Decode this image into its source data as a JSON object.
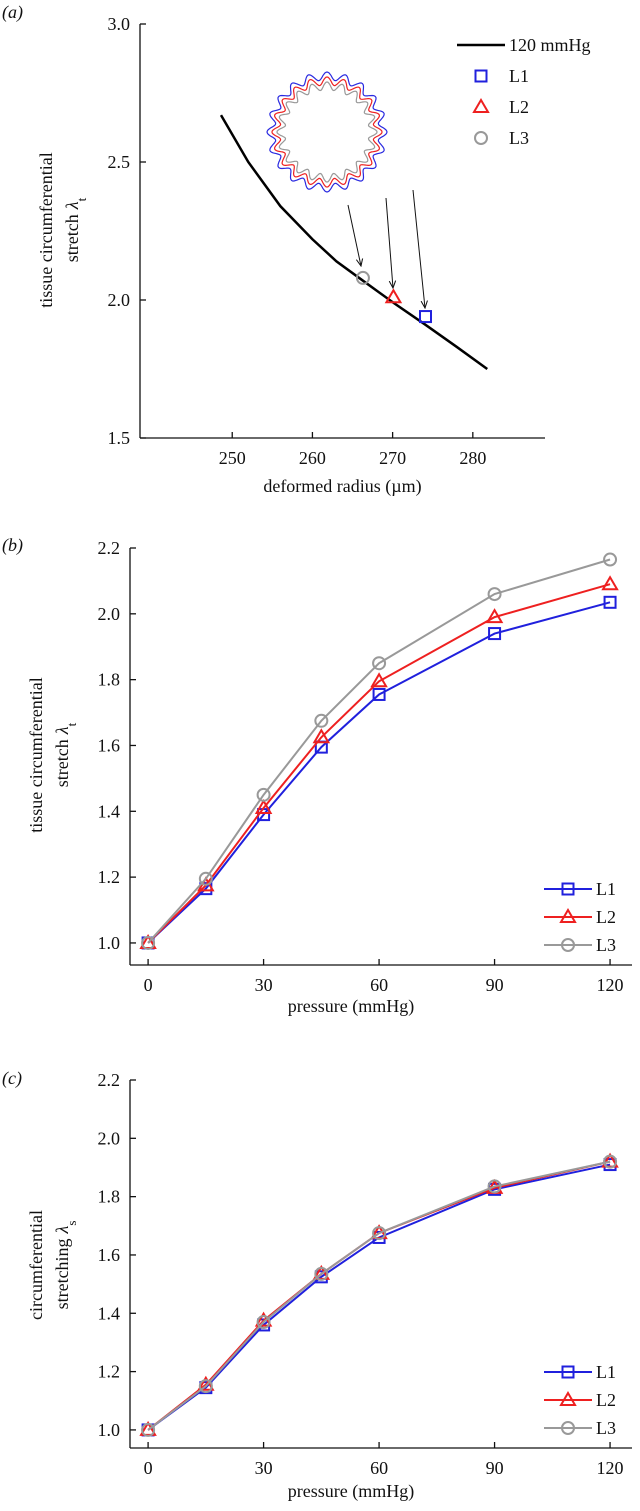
{
  "chart_data": [
    {
      "type": "line",
      "panel_label": "(a)",
      "x_label": "deformed radius (µm)",
      "y_label_lines": [
        "tissue circumferential",
        "stretch"
      ],
      "y_label_symbol": "λ",
      "y_label_subscript": "t",
      "xlim": [
        238.5,
        289
      ],
      "ylim": [
        1.5,
        3.0
      ],
      "xticks": [
        250,
        260,
        270,
        280
      ],
      "yticks": [
        1.5,
        {
          "value": 2,
          "label": "2.0"
        },
        2.5,
        {
          "value": 3,
          "label": "3.0"
        }
      ],
      "legend": "upper right",
      "series": [
        {
          "name": "120 mmHg",
          "color": "#000000",
          "line": true,
          "marker": "none",
          "x": [
            248.6,
            252,
            256,
            260,
            263,
            266.3,
            270.1,
            274.1,
            278,
            281.8
          ],
          "values": [
            2.67,
            2.5,
            2.34,
            2.22,
            2.14,
            2.07,
            1.99,
            1.91,
            1.83,
            1.75
          ]
        },
        {
          "name": "L1",
          "color": "#2020dd",
          "line": false,
          "marker": "square",
          "x": [
            274.1
          ],
          "values": [
            1.94
          ]
        },
        {
          "name": "L2",
          "color": "#ee2020",
          "line": false,
          "marker": "triangle",
          "x": [
            270.1
          ],
          "values": [
            2.01
          ]
        },
        {
          "name": "L3",
          "color": "#999999",
          "line": false,
          "marker": "circle",
          "x": [
            266.3
          ],
          "values": [
            2.08
          ]
        }
      ]
    },
    {
      "type": "line",
      "panel_label": "(b)",
      "x_label": "pressure (mmHg)",
      "y_label_lines": [
        "tissue circumferential",
        "stretch"
      ],
      "y_label_symbol": "λ",
      "y_label_subscript": "t",
      "xlim": [
        -4.7,
        125.7
      ],
      "ylim": [
        0.933,
        2.2
      ],
      "xticks": [
        0,
        30,
        60,
        90,
        120
      ],
      "yticks": [
        {
          "value": 1,
          "label": "1.0"
        },
        1.2,
        1.4,
        1.6,
        1.8,
        {
          "value": 2,
          "label": "2.0"
        },
        2.2
      ],
      "legend": "lower right",
      "x": [
        0,
        15,
        30,
        45,
        60,
        90,
        120
      ],
      "series": [
        {
          "name": "L1",
          "color": "#2020dd",
          "line": true,
          "marker": "square",
          "values": [
            1.0,
            1.165,
            1.39,
            1.595,
            1.755,
            1.94,
            2.035
          ]
        },
        {
          "name": "L2",
          "color": "#ee2020",
          "line": true,
          "marker": "triangle",
          "values": [
            1.0,
            1.175,
            1.41,
            1.625,
            1.795,
            1.99,
            2.09
          ]
        },
        {
          "name": "L3",
          "color": "#999999",
          "line": true,
          "marker": "circle",
          "values": [
            1.0,
            1.195,
            1.45,
            1.675,
            1.85,
            2.06,
            2.165
          ]
        }
      ]
    },
    {
      "type": "line",
      "panel_label": "(c)",
      "x_label": "pressure (mmHg)",
      "y_label_lines": [
        "circumferential",
        "stretching"
      ],
      "y_label_symbol": "λ",
      "y_label_subscript": "s",
      "xlim": [
        -4.7,
        125.7
      ],
      "ylim": [
        0.938,
        2.2
      ],
      "xticks": [
        0,
        30,
        60,
        90,
        120
      ],
      "yticks": [
        {
          "value": 1,
          "label": "1.0"
        },
        1.2,
        1.4,
        1.6,
        1.8,
        {
          "value": 2,
          "label": "2.0"
        },
        2.2
      ],
      "legend": "lower right",
      "x": [
        0,
        15,
        30,
        45,
        60,
        90,
        120
      ],
      "series": [
        {
          "name": "L1",
          "color": "#2020dd",
          "line": true,
          "marker": "square",
          "values": [
            1.0,
            1.145,
            1.36,
            1.525,
            1.66,
            1.825,
            1.91
          ]
        },
        {
          "name": "L2",
          "color": "#ee2020",
          "line": true,
          "marker": "triangle",
          "values": [
            1.0,
            1.155,
            1.375,
            1.535,
            1.675,
            1.83,
            1.92
          ]
        },
        {
          "name": "L3",
          "color": "#999999",
          "line": true,
          "marker": "circle",
          "values": [
            1.0,
            1.15,
            1.37,
            1.535,
            1.675,
            1.835,
            1.92
          ]
        }
      ]
    }
  ]
}
